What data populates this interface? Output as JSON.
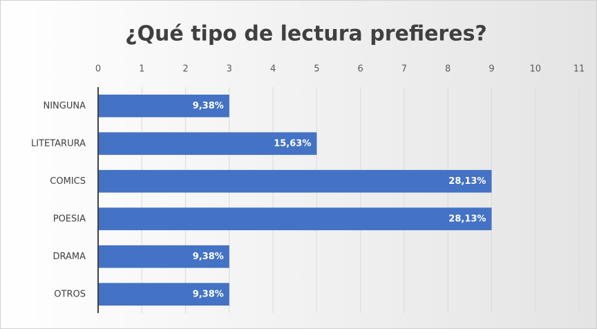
{
  "chart_data": {
    "type": "bar",
    "orientation": "horizontal",
    "title": "¿Qué tipo de lectura prefieres?",
    "categories": [
      "NINGUNA",
      "LITETARURA",
      "COMICS",
      "POESIA",
      "DRAMA",
      "OTROS"
    ],
    "values": [
      3,
      5,
      9,
      9,
      3,
      3
    ],
    "value_labels": [
      "9,38%",
      "15,63%",
      "28,13%",
      "28,13%",
      "9,38%",
      "9,38%"
    ],
    "color": "#4472c4",
    "xlim": [
      0,
      11
    ],
    "xticks": [
      0,
      1,
      2,
      3,
      4,
      5,
      6,
      7,
      8,
      9,
      10,
      11
    ],
    "grid": true
  }
}
